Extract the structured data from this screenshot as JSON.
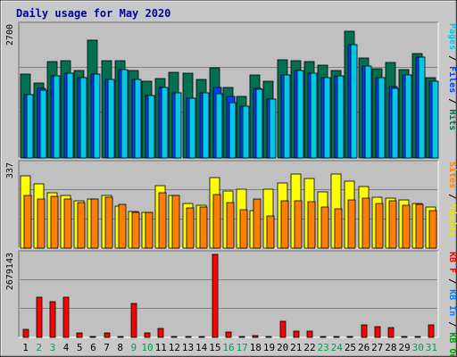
{
  "chart_data": {
    "type": "bar",
    "title": "Daily usage for May 2020",
    "x": [
      "1",
      "2",
      "3",
      "4",
      "5",
      "6",
      "7",
      "8",
      "9",
      "10",
      "11",
      "12",
      "13",
      "14",
      "15",
      "16",
      "17",
      "18",
      "19",
      "20",
      "21",
      "22",
      "23",
      "24",
      "25",
      "26",
      "27",
      "28",
      "29",
      "30",
      "31"
    ],
    "weekend_days": [
      2,
      3,
      9,
      10,
      16,
      17,
      23,
      24,
      30,
      31
    ],
    "panels": [
      {
        "name": "hits_files_pages",
        "scale_label": "2700",
        "ymax": 2700,
        "right_label": [
          {
            "text": "Pages",
            "color": "#00c8e8"
          },
          {
            "text": " / ",
            "color": "#000000"
          },
          {
            "text": "Files",
            "color": "#0040ff"
          },
          {
            "text": " / ",
            "color": "#000000"
          },
          {
            "text": "Hits",
            "color": "#007050"
          }
        ],
        "series": [
          {
            "name": "Hits",
            "color": "#007050",
            "values": [
              1710,
              1540,
              1970,
              1990,
              1780,
              2410,
              1980,
              1990,
              1790,
              1570,
              1630,
              1750,
              1740,
              1600,
              1840,
              1450,
              1260,
              1700,
              1570,
              2010,
              1990,
              1970,
              1890,
              1790,
              2590,
              2040,
              1820,
              1950,
              1810,
              2140,
              1640
            ]
          },
          {
            "name": "Files",
            "color": "#0040ff",
            "values": [
              1290,
              1420,
              1680,
              1730,
              1650,
              1710,
              1600,
              1810,
              1600,
              1280,
              1450,
              1330,
              1220,
              1330,
              1450,
              1260,
              1060,
              1430,
              1210,
              1700,
              1790,
              1730,
              1650,
              1680,
              2310,
              1870,
              1650,
              1460,
              1700,
              2070,
              1570
            ]
          },
          {
            "name": "Pages",
            "color": "#00c8e8",
            "values": [
              1290,
              1380,
              1680,
              1730,
              1650,
              1710,
              1600,
              1810,
              1600,
              1280,
              1450,
              1330,
              1220,
              1330,
              1310,
              1140,
              1060,
              1400,
              1210,
              1700,
              1790,
              1730,
              1650,
              1680,
              2310,
              1870,
              1650,
              1420,
              1700,
              2070,
              1570
            ]
          }
        ]
      },
      {
        "name": "sites_visits",
        "scale_label": "337",
        "ymax": 337,
        "right_label": [
          {
            "text": "Sites",
            "color": "#ff8000"
          },
          {
            "text": " / ",
            "color": "#000000"
          },
          {
            "text": "Visits",
            "color": "#e8e800"
          }
        ],
        "series": [
          {
            "name": "Visits",
            "color": "#ffff00",
            "values": [
              290,
              258,
              224,
              210,
              190,
              198,
              210,
              167,
              147,
              143,
              250,
              210,
              179,
              171,
              283,
              231,
              237,
              150,
              235,
              262,
              298,
              279,
              226,
              297,
              270,
              246,
              206,
              202,
              192,
              178,
              164
            ]
          },
          {
            "name": "Sites",
            "color": "#ff8000",
            "values": [
              213,
              196,
              208,
              198,
              183,
              198,
              204,
              174,
              142,
              143,
              222,
              213,
              163,
              164,
              216,
              182,
              153,
              196,
              129,
              191,
              190,
              186,
              164,
              156,
              195,
              200,
              178,
              191,
              171,
              174,
              149
            ]
          }
        ]
      },
      {
        "name": "traffic",
        "scale_label": "2679143",
        "ymax": 2679143,
        "right_label": [
          {
            "text": "KB F",
            "color": "#ff0000"
          },
          {
            "text": " / ",
            "color": "#000000"
          },
          {
            "text": "KB In",
            "color": "#0080ff"
          },
          {
            "text": " / ",
            "color": "#000000"
          },
          {
            "text": "KB Out",
            "color": "#00a000"
          }
        ],
        "series": [
          {
            "name": "KB F",
            "color": "#ff0000",
            "values": [
              270000,
              1290000,
              1160000,
              1290000,
              150000,
              40000,
              150000,
              30000,
              1090000,
              150000,
              300000,
              20000,
              40000,
              40000,
              2679143,
              170000,
              30000,
              50000,
              20000,
              520000,
              200000,
              200000,
              30000,
              30000,
              40000,
              390000,
              350000,
              330000,
              40000,
              40000,
              410000
            ]
          }
        ]
      }
    ]
  }
}
